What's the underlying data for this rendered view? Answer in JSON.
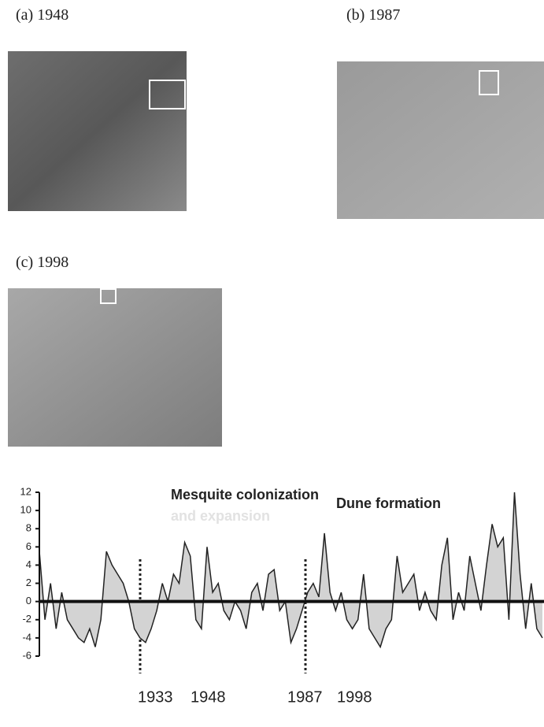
{
  "panels": [
    {
      "label": "(a) 1948"
    },
    {
      "label": "(b) 1987"
    },
    {
      "label": "(c) 1998"
    }
  ],
  "chart_data": {
    "type": "area",
    "annotations": [
      "Mesquite colonization",
      "and expansion",
      "Dune formation"
    ],
    "year_labels": [
      "1933",
      "1948",
      "1987",
      "1998"
    ],
    "color": "#d3d3d3",
    "values": [
      5.5,
      -2,
      2,
      -3,
      1,
      -2,
      -3,
      -4,
      -4.5,
      -3,
      -5,
      -2,
      5.5,
      4,
      3,
      2,
      0,
      -3,
      -4,
      -4.5,
      -3,
      -1,
      2,
      0,
      3,
      2,
      6.5,
      5,
      -2,
      -3,
      6,
      1,
      2,
      -1,
      -2,
      0,
      -1,
      -3,
      1,
      2,
      -1,
      3,
      3.5,
      -1,
      0,
      -4.5,
      -3,
      -1,
      1,
      2,
      0.5,
      7.5,
      1,
      -1,
      1,
      -2,
      -3,
      -2,
      3,
      -3,
      -4,
      -5,
      -3,
      -2,
      5,
      1,
      2,
      3,
      -1,
      1,
      -1,
      -2,
      4,
      7,
      -2,
      1,
      -1,
      5,
      2,
      -1,
      4,
      8.5,
      6,
      7,
      -2,
      12,
      3,
      -3,
      2,
      -3,
      -4
    ],
    "ylim": [
      -6,
      12
    ],
    "yticks": [
      12,
      10,
      8,
      6,
      4,
      2,
      0,
      -2,
      -4,
      -6
    ]
  }
}
